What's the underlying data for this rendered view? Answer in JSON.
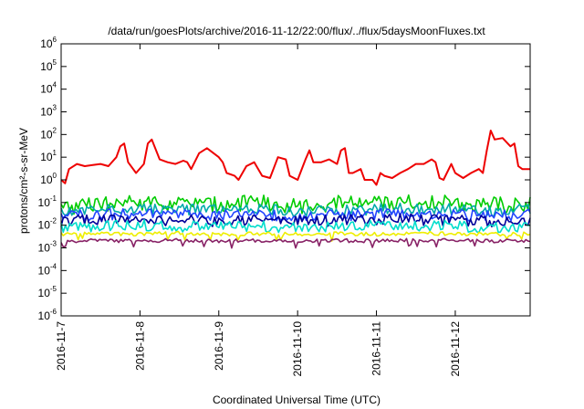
{
  "chart_data": {
    "type": "line",
    "title": "/data/run/goesPlots/archive/2016-11-12/22:00/flux/../flux/5daysMoonFluxes.txt",
    "xlabel": "Coordinated Universal Time (UTC)",
    "ylabel": "protons/cm²-s-sr-MeV",
    "yscale": "log",
    "ylim": [
      1e-06,
      1000000.0
    ],
    "xlim_days": [
      7,
      12.95
    ],
    "grid": false,
    "legend": "none",
    "x_ticks": [
      "2016-11-7",
      "2016-11-8",
      "2016-11-9",
      "2016-11-10",
      "2016-11-11",
      "2016-11-12"
    ],
    "y_ticks": [
      {
        "base": "10",
        "exp": "-6"
      },
      {
        "base": "10",
        "exp": "-5"
      },
      {
        "base": "10",
        "exp": "-4"
      },
      {
        "base": "10",
        "exp": "-3"
      },
      {
        "base": "10",
        "exp": "-2"
      },
      {
        "base": "10",
        "exp": "-1"
      },
      {
        "base": "10",
        "exp": "0"
      },
      {
        "base": "10",
        "exp": "1"
      },
      {
        "base": "10",
        "exp": "2"
      },
      {
        "base": "10",
        "exp": "3"
      },
      {
        "base": "10",
        "exp": "4"
      },
      {
        "base": "10",
        "exp": "5"
      },
      {
        "base": "10",
        "exp": "6"
      }
    ],
    "series": [
      {
        "color": "#ee0000",
        "x": [
          7.0,
          7.05,
          7.1,
          7.2,
          7.3,
          7.4,
          7.5,
          7.6,
          7.7,
          7.75,
          7.8,
          7.85,
          7.95,
          8.05,
          8.1,
          8.15,
          8.25,
          8.35,
          8.45,
          8.55,
          8.6,
          8.65,
          8.75,
          8.85,
          9.0,
          9.05,
          9.1,
          9.2,
          9.25,
          9.35,
          9.45,
          9.55,
          9.65,
          9.75,
          9.85,
          9.9,
          10.0,
          10.1,
          10.15,
          10.2,
          10.3,
          10.4,
          10.5,
          10.55,
          10.6,
          10.65,
          10.7,
          10.8,
          10.85,
          10.95,
          11.0,
          11.05,
          11.1,
          11.2,
          11.3,
          11.4,
          11.5,
          11.6,
          11.7,
          11.75,
          11.8,
          11.85,
          11.95,
          12.0,
          12.1,
          12.2,
          12.3,
          12.35,
          12.4,
          12.45,
          12.5,
          12.6,
          12.7,
          12.75,
          12.8,
          12.85,
          12.9,
          12.95
        ],
        "values": [
          1,
          0.7,
          3,
          5,
          4,
          4.5,
          5,
          4,
          10,
          30,
          40,
          6,
          2,
          5,
          40,
          60,
          8,
          6,
          5,
          7,
          6,
          3,
          15,
          25,
          10,
          6,
          2,
          1.5,
          1,
          4,
          6,
          1.5,
          1.2,
          10,
          8,
          1.5,
          1,
          8,
          20,
          6,
          6,
          8,
          5,
          20,
          25,
          2,
          2,
          3,
          1,
          1,
          0.6,
          2,
          1.5,
          1.2,
          2,
          3,
          5,
          5,
          8,
          6,
          1.2,
          1,
          5,
          2,
          1.2,
          2,
          3,
          2,
          20,
          150,
          60,
          70,
          30,
          40,
          4,
          3,
          3,
          3
        ]
      },
      {
        "color": "#00cc00",
        "x": [
          7.0,
          7.5,
          8.0,
          8.5,
          9.0,
          9.5,
          10.0,
          10.5,
          11.0,
          11.5,
          12.0,
          12.5,
          12.95
        ],
        "values": [
          0.06,
          0.08,
          0.1,
          0.09,
          0.08,
          0.1,
          0.07,
          0.09,
          0.1,
          0.11,
          0.09,
          0.08,
          0.09
        ]
      },
      {
        "color": "#00aaaa",
        "x": [
          7.0,
          7.5,
          8.0,
          8.5,
          9.0,
          9.5,
          10.0,
          10.5,
          11.0,
          11.5,
          12.0,
          12.5,
          12.95
        ],
        "values": [
          0.04,
          0.045,
          0.05,
          0.05,
          0.045,
          0.05,
          0.04,
          0.045,
          0.05,
          0.055,
          0.05,
          0.045,
          0.05
        ]
      },
      {
        "color": "#2244ff",
        "x": [
          7.0,
          7.5,
          8.0,
          8.5,
          9.0,
          9.5,
          10.0,
          10.5,
          11.0,
          11.5,
          12.0,
          12.5,
          12.95
        ],
        "values": [
          0.025,
          0.03,
          0.03,
          0.028,
          0.025,
          0.03,
          0.025,
          0.028,
          0.03,
          0.03,
          0.028,
          0.025,
          0.03
        ]
      },
      {
        "color": "#000099",
        "x": [
          7.0,
          7.5,
          8.0,
          8.5,
          9.0,
          9.5,
          10.0,
          10.5,
          11.0,
          11.5,
          12.0,
          12.5,
          12.95
        ],
        "values": [
          0.015,
          0.017,
          0.018,
          0.016,
          0.015,
          0.017,
          0.015,
          0.016,
          0.017,
          0.018,
          0.016,
          0.015,
          0.017
        ]
      },
      {
        "color": "#00ddcc",
        "x": [
          7.0,
          7.5,
          8.0,
          8.5,
          9.0,
          9.5,
          10.0,
          10.5,
          11.0,
          11.5,
          12.0,
          12.5,
          12.95
        ],
        "values": [
          0.008,
          0.009,
          0.01,
          0.009,
          0.008,
          0.009,
          0.008,
          0.009,
          0.009,
          0.01,
          0.009,
          0.008,
          0.009
        ]
      },
      {
        "color": "#eeee00",
        "x": [
          7.0,
          7.5,
          8.0,
          8.5,
          9.0,
          9.5,
          10.0,
          10.5,
          11.0,
          11.5,
          12.0,
          12.5,
          12.95
        ],
        "values": [
          0.004,
          0.0042,
          0.004,
          0.0045,
          0.004,
          0.0042,
          0.004,
          0.0043,
          0.004,
          0.0045,
          0.0042,
          0.004,
          0.0042
        ]
      },
      {
        "color": "#882266",
        "x": [
          7.0,
          7.5,
          8.0,
          8.5,
          9.0,
          9.5,
          10.0,
          10.5,
          11.0,
          11.5,
          12.0,
          12.5,
          12.95
        ],
        "values": [
          0.002,
          0.0021,
          0.002,
          0.0022,
          0.002,
          0.0021,
          0.002,
          0.0021,
          0.002,
          0.0022,
          0.0021,
          0.002,
          0.0021
        ]
      }
    ]
  }
}
